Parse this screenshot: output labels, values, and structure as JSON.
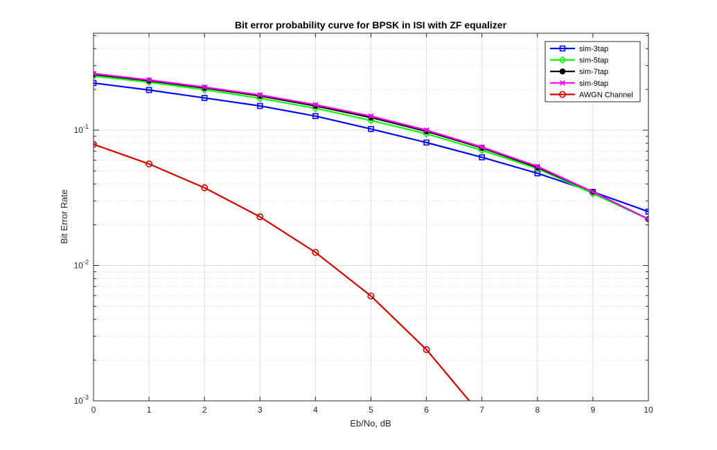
{
  "chart_data": {
    "type": "line",
    "title": "Bit error probability curve for BPSK in ISI with ZF equalizer",
    "xlabel": "Eb/No, dB",
    "ylabel": "Bit Error Rate",
    "xlim": [
      0,
      10
    ],
    "ylim": [
      0.001,
      0.5
    ],
    "yscale": "log",
    "grid": true,
    "legend_position": "top-right",
    "x": [
      0,
      1,
      2,
      3,
      4,
      5,
      6,
      7,
      8,
      9,
      10
    ],
    "x_ticks": [
      "0",
      "1",
      "2",
      "3",
      "4",
      "5",
      "6",
      "7",
      "8",
      "9",
      "10"
    ],
    "y_ticks": [
      {
        "base": "10",
        "exp": "-1",
        "value": 0.1
      },
      {
        "base": "10",
        "exp": "-2",
        "value": 0.01
      },
      {
        "base": "10",
        "exp": "-3",
        "value": 0.001
      }
    ],
    "series": [
      {
        "name": "sim-3tap",
        "color": "#0000ff",
        "marker": "square",
        "values": [
          0.223,
          0.198,
          0.173,
          0.151,
          0.127,
          0.102,
          0.081,
          0.063,
          0.048,
          0.035,
          0.025
        ]
      },
      {
        "name": "sim-5tap",
        "color": "#00ff00",
        "marker": "diamond",
        "values": [
          0.251,
          0.226,
          0.199,
          0.172,
          0.145,
          0.118,
          0.094,
          0.071,
          0.052,
          0.034,
          0.022
        ]
      },
      {
        "name": "sim-7tap",
        "color": "#000000",
        "marker": "circle-filled",
        "values": [
          0.258,
          0.232,
          0.205,
          0.179,
          0.151,
          0.124,
          0.098,
          0.074,
          0.053,
          0.035,
          0.022
        ]
      },
      {
        "name": "sim-9tap",
        "color": "#ff00ff",
        "marker": "x",
        "values": [
          0.262,
          0.235,
          0.208,
          0.182,
          0.154,
          0.127,
          0.1,
          0.075,
          0.054,
          0.035,
          0.022
        ]
      },
      {
        "name": "AWGN Channel",
        "color": "#d40000",
        "marker": "circle",
        "values": [
          0.0786,
          0.0563,
          0.0375,
          0.0229,
          0.0125,
          0.00595,
          0.00239,
          0.000773,
          null,
          null,
          null
        ]
      }
    ]
  }
}
